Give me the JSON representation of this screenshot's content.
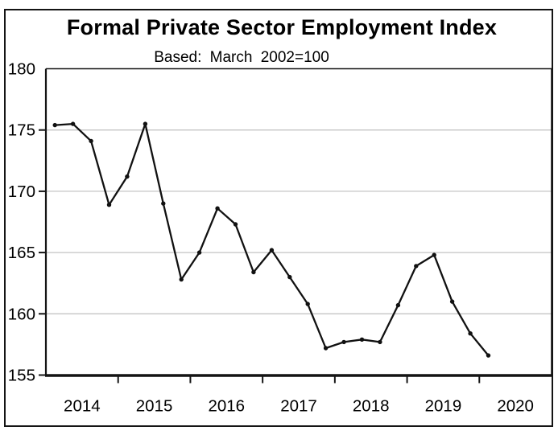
{
  "chart_data": {
    "type": "line",
    "title": "Formal Private Sector Employment Index",
    "subtitle": "Based: March 2002=100",
    "frequency": "quarterly",
    "legend": "none",
    "grid": "horizontal-only",
    "ylim": [
      155,
      180
    ],
    "y_ticks": [
      155,
      160,
      165,
      170,
      175,
      180
    ],
    "y_gridlines": [
      160,
      165,
      170,
      175
    ],
    "x_year_labels": [
      "2014",
      "2015",
      "2016",
      "2017",
      "2018",
      "2019",
      "2020"
    ],
    "series": [
      {
        "name": "Formal Private Sector Employment Index",
        "x": [
          "2014 Q1",
          "2014 Q2",
          "2014 Q3",
          "2014 Q4",
          "2015 Q1",
          "2015 Q2",
          "2015 Q3",
          "2015 Q4",
          "2016 Q1",
          "2016 Q2",
          "2016 Q3",
          "2016 Q4",
          "2017 Q1",
          "2017 Q2",
          "2017 Q3",
          "2017 Q4",
          "2018 Q1",
          "2018 Q2",
          "2018 Q3",
          "2018 Q4",
          "2019 Q1",
          "2019 Q2",
          "2019 Q3",
          "2019 Q4",
          "2020 Q1"
        ],
        "values": [
          175.4,
          175.5,
          174.1,
          168.9,
          171.2,
          175.5,
          169.0,
          162.8,
          165.0,
          168.6,
          167.3,
          163.4,
          165.2,
          163.0,
          160.8,
          157.2,
          157.7,
          157.9,
          157.7,
          160.7,
          163.9,
          164.8,
          161.0,
          158.4,
          156.6
        ]
      }
    ],
    "colors": {
      "line": "#111111",
      "marker": "#111111",
      "grid": "#c4c4c4",
      "frame": "#141414",
      "text": "#000000",
      "background": "#ffffff"
    }
  }
}
